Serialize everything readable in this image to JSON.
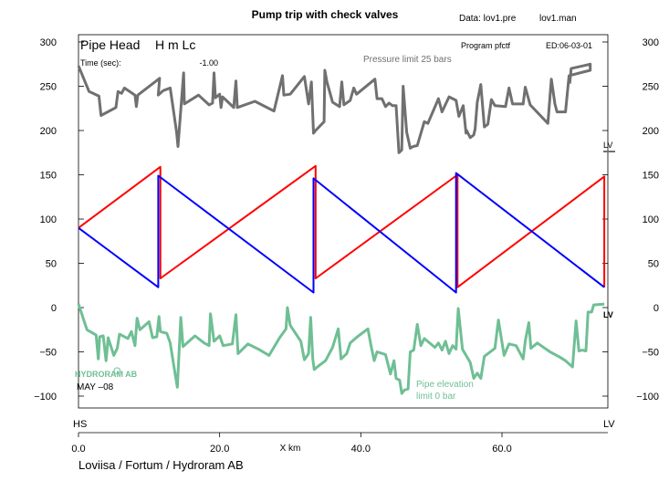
{
  "header": {
    "title": "Pump trip with check valves",
    "data_file": "Data: lov1.pre",
    "man_file": "lov1.man",
    "program": "Program  pfctf",
    "edition": "ED:06-03-01"
  },
  "plot_label": {
    "pipe_head": "Pipe Head",
    "symbols": "H   m Lc",
    "time_label": "Time (sec):",
    "time_value": "-1.00"
  },
  "annotations": {
    "pressure_limit": "Pressure limit 25 bars",
    "pipe_elevation_1": "Pipe elevation",
    "pipe_elevation_2": "limit 0 bar",
    "lv_top": "LV",
    "lv_mid": "LV",
    "hydroram": "HYDRORAM AB",
    "hydroram_o": "O",
    "date": "MAY –08"
  },
  "xaxis": {
    "start_label": "HS",
    "end_label": "LV",
    "title": "X km",
    "footer": "Loviisa / Fortum / Hydroram AB"
  },
  "colors": {
    "pressure_limit": "#707070",
    "elevation": "#6fbf94",
    "red": "#ff0000",
    "blue": "#0000ff"
  },
  "chart_data": {
    "type": "line",
    "xlim": [
      0,
      75
    ],
    "ylim": [
      -100,
      300
    ],
    "yticks": [
      300,
      250,
      200,
      150,
      100,
      50,
      0,
      -50,
      -100
    ],
    "ytick_labels": [
      "300",
      "250",
      "200",
      "150",
      "100",
      "50",
      "0",
      "−50",
      "−100"
    ],
    "xticks": [
      0,
      20,
      40,
      60
    ],
    "xtick_labels": [
      "0.0",
      "20.0",
      "40.0",
      "60.0"
    ],
    "series": [
      {
        "name": "Pressure limit 25 bars",
        "color": "#707070",
        "points": [
          [
            0,
            273
          ],
          [
            1.5,
            244
          ],
          [
            2.9,
            239
          ],
          [
            3.2,
            217
          ],
          [
            5.3,
            226
          ],
          [
            5.6,
            244
          ],
          [
            6.1,
            242
          ],
          [
            6.5,
            248
          ],
          [
            8.0,
            240
          ],
          [
            8.2,
            227
          ],
          [
            8.4,
            240
          ],
          [
            11.5,
            259
          ],
          [
            11.3,
            240
          ],
          [
            12.0,
            245
          ],
          [
            13.0,
            248
          ],
          [
            13.9,
            198
          ],
          [
            14.1,
            182
          ],
          [
            14.9,
            265
          ],
          [
            15.0,
            230
          ],
          [
            17.0,
            240
          ],
          [
            18.5,
            229
          ],
          [
            19.0,
            231
          ],
          [
            19.2,
            265
          ],
          [
            19.4,
            237
          ],
          [
            20.0,
            241
          ],
          [
            20.2,
            226
          ],
          [
            20.4,
            238
          ],
          [
            22.0,
            226
          ],
          [
            22.3,
            256
          ],
          [
            22.5,
            226
          ],
          [
            25.0,
            233
          ],
          [
            27.7,
            222
          ],
          [
            28.9,
            262
          ],
          [
            29.1,
            240
          ],
          [
            30.0,
            241
          ],
          [
            32.0,
            261
          ],
          [
            32.6,
            230
          ],
          [
            33.0,
            255
          ],
          [
            33.3,
            197
          ],
          [
            33.6,
            200
          ],
          [
            34.8,
            210
          ],
          [
            34.9,
            268
          ],
          [
            35.2,
            255
          ],
          [
            36.0,
            232
          ],
          [
            37.0,
            227
          ],
          [
            37.3,
            255
          ],
          [
            37.6,
            229
          ],
          [
            38.5,
            234
          ],
          [
            39.0,
            248
          ],
          [
            39.4,
            241
          ],
          [
            42.0,
            258
          ],
          [
            42.3,
            236
          ],
          [
            43.0,
            236
          ],
          [
            43.5,
            227
          ],
          [
            44.0,
            231
          ],
          [
            44.5,
            228
          ],
          [
            45.0,
            228
          ],
          [
            45.4,
            175
          ],
          [
            45.8,
            178
          ],
          [
            46.0,
            250
          ],
          [
            46.5,
            198
          ],
          [
            47.0,
            180
          ],
          [
            47.4,
            182
          ],
          [
            48.0,
            183
          ],
          [
            49.0,
            210
          ],
          [
            49.5,
            208
          ],
          [
            51.0,
            236
          ],
          [
            51.5,
            221
          ],
          [
            52.5,
            238
          ],
          [
            53.5,
            234
          ],
          [
            53.9,
            216
          ],
          [
            54.5,
            228
          ],
          [
            54.9,
            197
          ],
          [
            55.0,
            200
          ],
          [
            55.5,
            192
          ],
          [
            56.0,
            195
          ],
          [
            56.2,
            202
          ],
          [
            56.5,
            232
          ],
          [
            57.0,
            252
          ],
          [
            57.5,
            204
          ],
          [
            58.0,
            207
          ],
          [
            58.5,
            235
          ],
          [
            59.0,
            228
          ],
          [
            60.5,
            227
          ],
          [
            61.0,
            248
          ],
          [
            61.5,
            230
          ],
          [
            63.0,
            230
          ],
          [
            63.3,
            249
          ],
          [
            64.0,
            229
          ],
          [
            66.5,
            208
          ],
          [
            67.0,
            258
          ],
          [
            67.5,
            230
          ],
          [
            67.8,
            221
          ],
          [
            69.0,
            221
          ],
          [
            69.5,
            262
          ],
          [
            72.5,
            268
          ],
          [
            72.5,
            275
          ],
          [
            69.8,
            270
          ],
          [
            69.6,
            253
          ]
        ]
      },
      {
        "name": "Pipe elevation limit 0 bar",
        "color": "#6fbf94",
        "points": [
          [
            0,
            4
          ],
          [
            1.2,
            -25
          ],
          [
            2.5,
            -31
          ],
          [
            2.8,
            -58
          ],
          [
            3.0,
            -33
          ],
          [
            3.5,
            -32
          ],
          [
            3.9,
            -60
          ],
          [
            4.2,
            -34
          ],
          [
            5.0,
            -54
          ],
          [
            5.5,
            -46
          ],
          [
            5.8,
            -30
          ],
          [
            7.0,
            -35
          ],
          [
            7.5,
            -27
          ],
          [
            8.0,
            -43
          ],
          [
            8.3,
            -12
          ],
          [
            8.7,
            -25
          ],
          [
            10.0,
            -16
          ],
          [
            10.5,
            -34
          ],
          [
            11.1,
            -33
          ],
          [
            11.4,
            -10
          ],
          [
            11.6,
            -27
          ],
          [
            12.0,
            -28
          ],
          [
            12.5,
            -29
          ],
          [
            13.0,
            -40
          ],
          [
            13.7,
            -75
          ],
          [
            14.0,
            -90
          ],
          [
            14.5,
            -11
          ],
          [
            14.8,
            -44
          ],
          [
            16.5,
            -32
          ],
          [
            17.8,
            -40
          ],
          [
            18.5,
            -43
          ],
          [
            18.7,
            -7
          ],
          [
            19.2,
            -38
          ],
          [
            20.0,
            -32
          ],
          [
            20.5,
            -43
          ],
          [
            21.8,
            -41
          ],
          [
            22.3,
            -8
          ],
          [
            22.6,
            -52
          ],
          [
            24.0,
            -41
          ],
          [
            25.5,
            -47
          ],
          [
            27.0,
            -54
          ],
          [
            28.5,
            -34
          ],
          [
            29.4,
            -24
          ],
          [
            29.6,
            0
          ],
          [
            30.0,
            -20
          ],
          [
            31.5,
            -38
          ],
          [
            32.0,
            -59
          ],
          [
            32.6,
            -52
          ],
          [
            32.9,
            -11
          ],
          [
            33.2,
            -58
          ],
          [
            33.4,
            -70
          ],
          [
            34.0,
            -66
          ],
          [
            35.0,
            -60
          ],
          [
            36.0,
            -45
          ],
          [
            36.8,
            -24
          ],
          [
            37.2,
            -58
          ],
          [
            38.0,
            -52
          ],
          [
            38.5,
            -40
          ],
          [
            39.5,
            -33
          ],
          [
            41.0,
            -24
          ],
          [
            41.5,
            -45
          ],
          [
            41.9,
            -60
          ],
          [
            42.3,
            -50
          ],
          [
            43.5,
            -53
          ],
          [
            44.2,
            -75
          ],
          [
            44.7,
            -60
          ],
          [
            45.0,
            -80
          ],
          [
            45.5,
            -82
          ],
          [
            45.8,
            -97
          ],
          [
            46.2,
            -93
          ],
          [
            46.7,
            -92
          ],
          [
            47.0,
            -50
          ],
          [
            47.5,
            -48
          ],
          [
            48.0,
            -19
          ],
          [
            48.5,
            -43
          ],
          [
            49.0,
            -35
          ],
          [
            50.5,
            -45
          ],
          [
            51.0,
            -40
          ],
          [
            51.5,
            -48
          ],
          [
            52.0,
            -38
          ],
          [
            52.5,
            -52
          ],
          [
            53.0,
            -43
          ],
          [
            53.5,
            -47
          ],
          [
            53.8,
            -1
          ],
          [
            54.4,
            -47
          ],
          [
            55.5,
            -62
          ],
          [
            56.0,
            -80
          ],
          [
            56.5,
            -74
          ],
          [
            57.0,
            -80
          ],
          [
            57.5,
            -55
          ],
          [
            59.0,
            -46
          ],
          [
            59.5,
            -14
          ],
          [
            60.3,
            -54
          ],
          [
            61.0,
            -41
          ],
          [
            62.0,
            -43
          ],
          [
            63.0,
            -58
          ],
          [
            63.3,
            -38
          ],
          [
            63.8,
            -17
          ],
          [
            64.1,
            -46
          ],
          [
            65.0,
            -40
          ],
          [
            66.8,
            -50
          ],
          [
            68.2,
            -56
          ],
          [
            69.0,
            -60
          ],
          [
            70.0,
            -67
          ],
          [
            70.5,
            -15
          ],
          [
            70.9,
            -49
          ],
          [
            71.4,
            -48
          ],
          [
            71.9,
            -49
          ],
          [
            72.2,
            -5
          ],
          [
            72.7,
            -5
          ],
          [
            73.0,
            3
          ],
          [
            74.5,
            4
          ]
        ]
      },
      {
        "name": "red",
        "color": "#ff0000",
        "points": [
          [
            0,
            90
          ],
          [
            11.6,
            159
          ],
          [
            11.6,
            33
          ],
          [
            33.6,
            160
          ],
          [
            33.6,
            33
          ],
          [
            53.7,
            150
          ],
          [
            53.7,
            23
          ],
          [
            74.5,
            148
          ],
          [
            74.5,
            23
          ]
        ]
      },
      {
        "name": "blue",
        "color": "#0000ff",
        "points": [
          [
            0,
            90
          ],
          [
            11.3,
            23
          ],
          [
            11.3,
            149
          ],
          [
            33.3,
            17
          ],
          [
            33.3,
            146
          ],
          [
            53.5,
            17
          ],
          [
            53.5,
            152
          ],
          [
            74.5,
            23
          ]
        ]
      }
    ]
  }
}
